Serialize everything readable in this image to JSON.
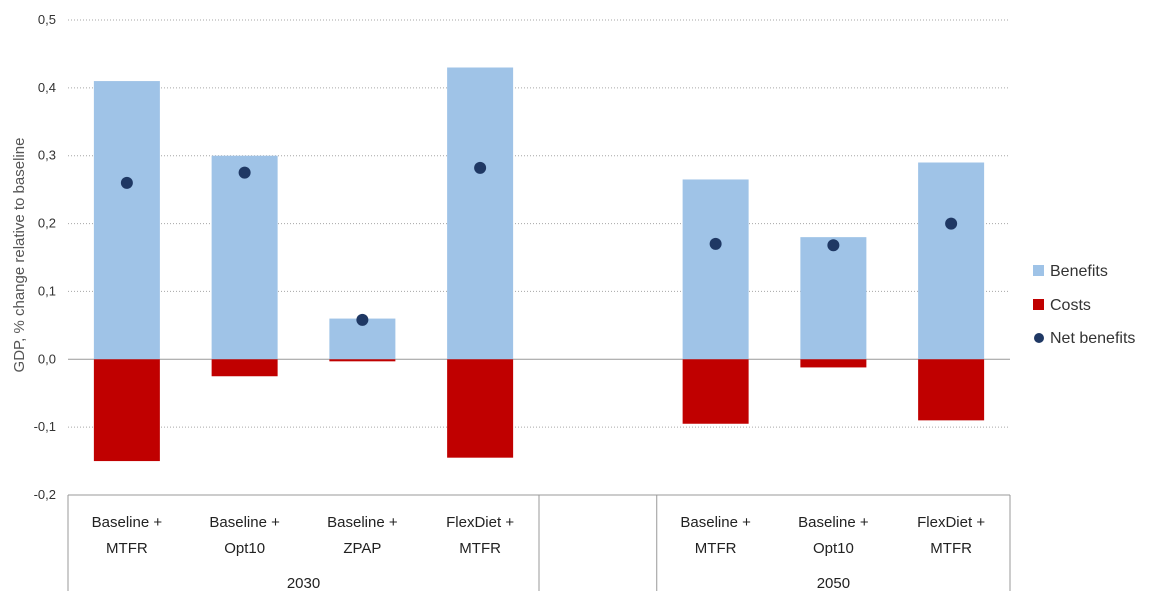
{
  "chart_data": {
    "type": "bar",
    "ylabel": "GDP, % change relative to baseline",
    "ylim": [
      -0.2,
      0.5
    ],
    "yticks": [
      -0.2,
      -0.1,
      0.0,
      0.1,
      0.2,
      0.3,
      0.4,
      0.5
    ],
    "ytick_labels": [
      "-0,2",
      "-0,1",
      "0,0",
      "0,1",
      "0,2",
      "0,3",
      "0,4",
      "0,5"
    ],
    "grid": true,
    "legend_position": "right",
    "groups": [
      {
        "label": "2030",
        "categories": [
          {
            "line1": "Baseline +",
            "line2": "MTFR"
          },
          {
            "line1": "Baseline +",
            "line2": "Opt10"
          },
          {
            "line1": "Baseline +",
            "line2": "ZPAP"
          },
          {
            "line1": "FlexDiet +",
            "line2": "MTFR"
          }
        ]
      },
      {
        "label": "",
        "categories": [
          {
            "line1": "",
            "line2": ""
          }
        ]
      },
      {
        "label": "2050",
        "categories": [
          {
            "line1": "Baseline +",
            "line2": "MTFR"
          },
          {
            "line1": "Baseline +",
            "line2": "Opt10"
          },
          {
            "line1": "FlexDiet +",
            "line2": "MTFR"
          }
        ]
      }
    ],
    "series": [
      {
        "name": "Benefits",
        "color": "#9fc3e7",
        "kind": "bar",
        "values": [
          0.41,
          0.3,
          0.06,
          0.43,
          null,
          0.265,
          0.18,
          0.29
        ]
      },
      {
        "name": "Costs",
        "color": "#c00000",
        "kind": "bar",
        "values": [
          -0.15,
          -0.025,
          -0.003,
          -0.145,
          null,
          -0.095,
          -0.012,
          -0.09
        ]
      },
      {
        "name": "Net benefits",
        "color": "#1f3864",
        "kind": "point",
        "values": [
          0.26,
          0.275,
          0.058,
          0.282,
          null,
          0.17,
          0.168,
          0.2
        ]
      }
    ]
  }
}
